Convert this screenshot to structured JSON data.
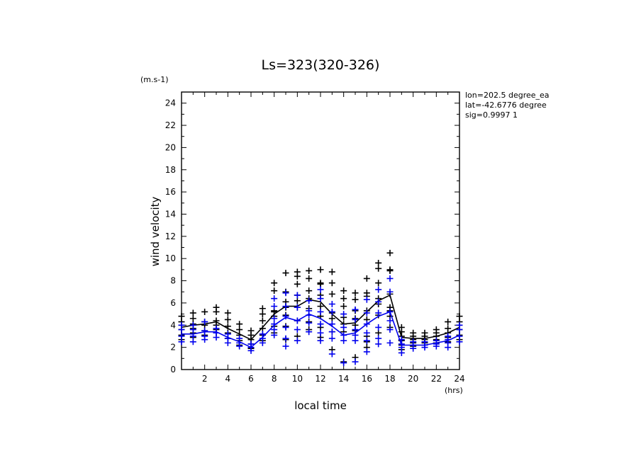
{
  "chart_data": {
    "type": "scatter",
    "title": "Ls=323(320-326)",
    "xlabel": "local time",
    "ylabel": "wind velocity",
    "x_unit": "(hrs)",
    "y_unit": "(m.s-1)",
    "xlim": [
      0,
      24
    ],
    "ylim": [
      0,
      25
    ],
    "x_ticks": [
      2,
      4,
      6,
      8,
      10,
      12,
      14,
      16,
      18,
      20,
      22,
      24
    ],
    "y_ticks": [
      0,
      2,
      4,
      6,
      8,
      10,
      12,
      14,
      16,
      18,
      20,
      22,
      24
    ],
    "annotations": [
      "lon=202.5 degree_ea",
      "lat=-42.6776 degree",
      "sig=0.9997 1"
    ],
    "series": [
      {
        "name": "black",
        "color": "#000000",
        "mean_line": {
          "x": [
            0,
            1,
            2,
            3,
            4,
            5,
            6,
            7,
            8,
            9,
            10,
            11,
            12,
            13,
            14,
            15,
            16,
            17,
            18,
            19,
            20,
            21,
            22,
            23,
            24
          ],
          "y": [
            3.8,
            4.0,
            4.1,
            4.3,
            3.7,
            3.2,
            2.7,
            3.8,
            5.0,
            5.7,
            5.7,
            6.3,
            6.1,
            5.0,
            4.1,
            4.2,
            5.2,
            6.2,
            6.7,
            2.9,
            2.8,
            2.8,
            3.0,
            3.3,
            3.8
          ]
        },
        "points": [
          {
            "x": 0,
            "y": [
              4.8,
              4.3,
              4.0,
              3.6,
              3.1,
              2.7
            ]
          },
          {
            "x": 1,
            "y": [
              5.1,
              4.6,
              4.1,
              3.7,
              3.3,
              2.9
            ]
          },
          {
            "x": 2,
            "y": [
              5.2,
              4.3,
              4.0,
              3.5,
              3.1
            ]
          },
          {
            "x": 3,
            "y": [
              5.6,
              5.2,
              4.4,
              4.0,
              3.6,
              3.3
            ]
          },
          {
            "x": 4,
            "y": [
              5.1,
              4.5,
              3.9,
              3.3,
              2.8
            ]
          },
          {
            "x": 5,
            "y": [
              4.1,
              3.6,
              3.1,
              2.6,
              2.2
            ]
          },
          {
            "x": 6,
            "y": [
              3.5,
              3.1,
              2.7,
              2.3,
              1.9
            ]
          },
          {
            "x": 7,
            "y": [
              5.5,
              5.0,
              4.4,
              3.7,
              3.1,
              2.6
            ]
          },
          {
            "x": 8,
            "y": [
              7.8,
              7.1,
              5.3,
              5.2,
              4.8,
              3.9,
              3.3
            ]
          },
          {
            "x": 9,
            "y": [
              8.7,
              7.0,
              6.1,
              5.6,
              4.9,
              3.9,
              2.7
            ]
          },
          {
            "x": 10,
            "y": [
              8.8,
              8.4,
              7.7,
              6.7,
              6.2,
              5.6,
              4.4,
              3.0
            ]
          },
          {
            "x": 11,
            "y": [
              8.9,
              8.2,
              7.1,
              6.4,
              5.5,
              4.3,
              3.6
            ]
          },
          {
            "x": 12,
            "y": [
              9.0,
              7.8,
              7.7,
              6.7,
              5.7,
              4.8,
              3.8,
              2.9
            ]
          },
          {
            "x": 13,
            "y": [
              8.8,
              7.8,
              6.8,
              5.1,
              4.6,
              3.4,
              1.8
            ]
          },
          {
            "x": 14,
            "y": [
              7.1,
              6.4,
              5.7,
              4.7,
              4.1,
              3.4,
              0.7
            ]
          },
          {
            "x": 15,
            "y": [
              6.9,
              6.3,
              5.3,
              4.6,
              4.0,
              3.5,
              1.1
            ]
          },
          {
            "x": 16,
            "y": [
              8.2,
              6.9,
              6.6,
              5.3,
              4.5,
              3.0,
              2.5,
              2.0
            ]
          },
          {
            "x": 17,
            "y": [
              9.6,
              9.1,
              7.8,
              6.4,
              5.9,
              4.9,
              3.3
            ]
          },
          {
            "x": 18,
            "y": [
              10.5,
              9.0,
              8.9,
              6.8,
              5.6,
              5.3,
              4.8,
              3.8
            ]
          },
          {
            "x": 19,
            "y": [
              3.8,
              3.4,
              3.0,
              2.6,
              2.2,
              1.8
            ]
          },
          {
            "x": 20,
            "y": [
              3.3,
              3.0,
              2.7,
              2.4,
              2.1
            ]
          },
          {
            "x": 21,
            "y": [
              3.3,
              3.0,
              2.7,
              2.4
            ]
          },
          {
            "x": 22,
            "y": [
              3.6,
              3.3,
              3.0,
              2.7,
              2.4
            ]
          },
          {
            "x": 23,
            "y": [
              4.3,
              3.7,
              3.3,
              2.9,
              2.5
            ]
          },
          {
            "x": 24,
            "y": [
              4.8,
              4.3,
              4.0,
              3.6,
              3.1,
              2.7
            ]
          }
        ]
      },
      {
        "name": "blue",
        "color": "#0000ee",
        "mean_line": {
          "x": [
            0,
            1,
            2,
            3,
            4,
            5,
            6,
            7,
            8,
            9,
            10,
            11,
            12,
            13,
            14,
            15,
            16,
            17,
            18,
            19,
            20,
            21,
            22,
            23,
            24
          ],
          "y": [
            3.2,
            3.2,
            3.4,
            3.4,
            2.9,
            2.5,
            2.0,
            2.9,
            4.0,
            4.7,
            4.4,
            5.0,
            4.6,
            3.9,
            3.1,
            3.3,
            4.1,
            4.8,
            5.2,
            2.2,
            2.2,
            2.2,
            2.4,
            2.6,
            3.1
          ]
        },
        "points": [
          {
            "x": 0,
            "y": [
              4.0,
              3.6,
              3.0,
              2.5
            ]
          },
          {
            "x": 1,
            "y": [
              4.0,
              3.6,
              3.0,
              2.5
            ]
          },
          {
            "x": 2,
            "y": [
              4.3,
              3.5,
              3.0,
              2.7
            ]
          },
          {
            "x": 3,
            "y": [
              3.7,
              3.3,
              2.9
            ]
          },
          {
            "x": 4,
            "y": [
              3.2,
              2.8,
              2.4
            ]
          },
          {
            "x": 5,
            "y": [
              2.8,
              2.4,
              2.1
            ]
          },
          {
            "x": 6,
            "y": [
              2.3,
              2.0,
              1.7
            ]
          },
          {
            "x": 7,
            "y": [
              3.2,
              2.8,
              2.4
            ]
          },
          {
            "x": 8,
            "y": [
              6.4,
              5.7,
              4.6,
              4.1,
              3.6,
              3.1
            ]
          },
          {
            "x": 9,
            "y": [
              6.9,
              5.7,
              4.8,
              3.8,
              2.8,
              2.1
            ]
          },
          {
            "x": 10,
            "y": [
              6.7,
              5.6,
              4.4,
              3.6,
              2.6
            ]
          },
          {
            "x": 11,
            "y": [
              6.2,
              5.3,
              4.9,
              4.2,
              3.4
            ]
          },
          {
            "x": 12,
            "y": [
              7.2,
              6.4,
              5.2,
              4.1,
              3.3,
              2.6
            ]
          },
          {
            "x": 13,
            "y": [
              5.9,
              5.2,
              4.1,
              3.4,
              2.8,
              1.4
            ]
          },
          {
            "x": 14,
            "y": [
              5.0,
              3.8,
              3.1,
              2.6,
              0.6
            ]
          },
          {
            "x": 15,
            "y": [
              5.4,
              4.5,
              3.6,
              3.1,
              2.6,
              0.7
            ]
          },
          {
            "x": 16,
            "y": [
              6.3,
              5.1,
              4.1,
              3.3,
              2.6,
              1.6
            ]
          },
          {
            "x": 17,
            "y": [
              7.2,
              6.1,
              5.1,
              3.8,
              2.8,
              2.3
            ]
          },
          {
            "x": 18,
            "y": [
              8.2,
              7.0,
              5.2,
              4.4,
              3.6,
              2.4
            ]
          },
          {
            "x": 19,
            "y": [
              2.7,
              2.3,
              2.0,
              1.5
            ]
          },
          {
            "x": 20,
            "y": [
              2.5,
              2.2,
              1.9
            ]
          },
          {
            "x": 21,
            "y": [
              2.5,
              2.2,
              2.0
            ]
          },
          {
            "x": 22,
            "y": [
              2.6,
              2.3,
              2.1
            ]
          },
          {
            "x": 23,
            "y": [
              3.0,
              2.7,
              2.4,
              2.0
            ]
          },
          {
            "x": 24,
            "y": [
              4.0,
              3.6,
              3.0,
              2.5
            ]
          }
        ]
      }
    ]
  }
}
